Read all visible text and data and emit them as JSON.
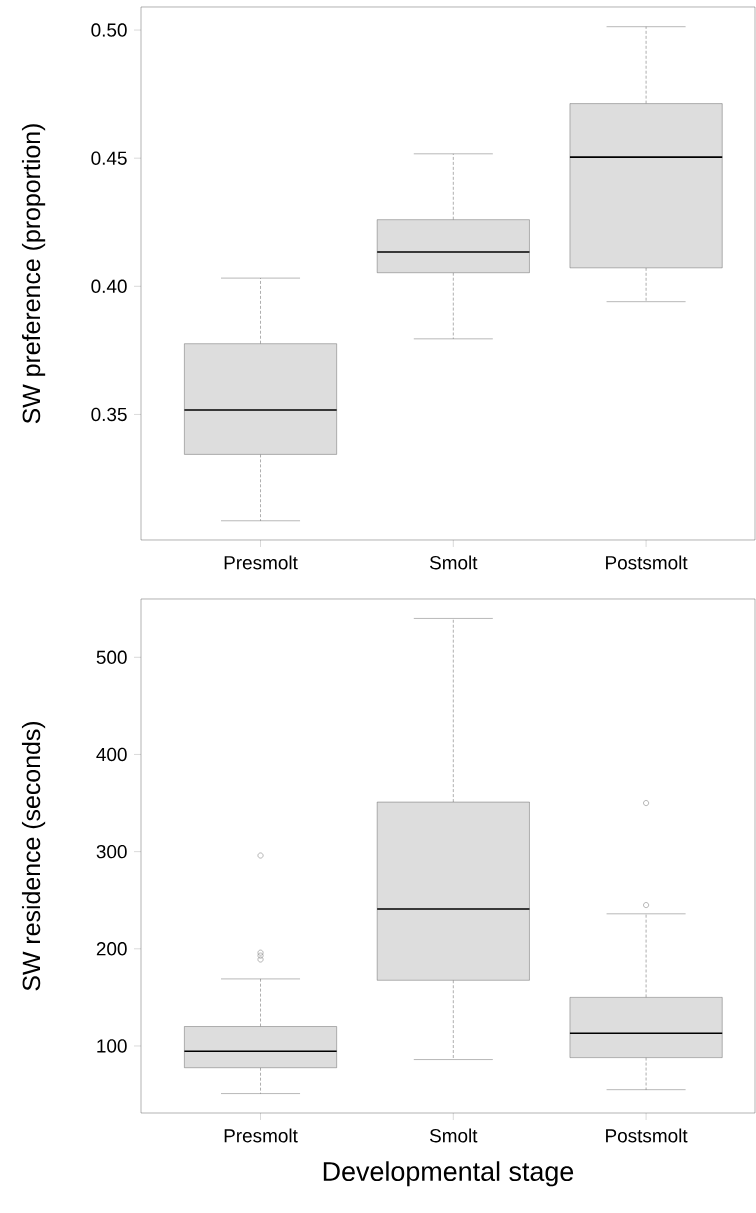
{
  "chart_data": [
    {
      "type": "box",
      "ylabel": "SW preference (proportion)",
      "categories": [
        "Presmolt",
        "Smolt",
        "Postsmolt"
      ],
      "series": [
        {
          "color": "#dddddd",
          "boxes": [
            {
              "low": 0.3085,
              "q1": 0.3344,
              "median": 0.3517,
              "q3": 0.3776,
              "high": 0.4032
            },
            {
              "low": 0.3795,
              "q1": 0.4053,
              "median": 0.4134,
              "q3": 0.426,
              "high": 0.4517
            },
            {
              "low": 0.394,
              "q1": 0.4072,
              "median": 0.4504,
              "q3": 0.4713,
              "high": 0.5013
            }
          ]
        }
      ],
      "ylim": [
        0.301,
        0.509
      ],
      "yticks": [
        {
          "value": 0.35,
          "label": "0.35"
        },
        {
          "value": 0.4,
          "label": "0.40"
        },
        {
          "value": 0.45,
          "label": "0.45"
        },
        {
          "value": 0.5,
          "label": "0.50"
        }
      ],
      "marker": "circle"
    },
    {
      "type": "box",
      "xlabel": "Developmental stage",
      "ylabel": "SW residence (seconds)",
      "categories": [
        "Presmolt",
        "Smolt",
        "Postsmolt"
      ],
      "series": [
        {
          "color": "#dddddd",
          "boxes": [
            {
              "low": 51,
              "q1": 77.6,
              "median": 94.5,
              "q3": 120,
              "high": 169,
              "outliers": [
                296,
                196,
                193,
                189
              ]
            },
            {
              "low": 86,
              "q1": 167.6,
              "median": 241,
              "q3": 351,
              "high": 540
            },
            {
              "low": 55,
              "q1": 88,
              "median": 113,
              "q3": 150,
              "high": 236,
              "outliers": [
                350,
                245
              ]
            }
          ]
        }
      ],
      "ylim": [
        31,
        560
      ],
      "yticks": [
        100,
        200,
        300,
        400,
        500
      ],
      "marker": "circle"
    }
  ]
}
